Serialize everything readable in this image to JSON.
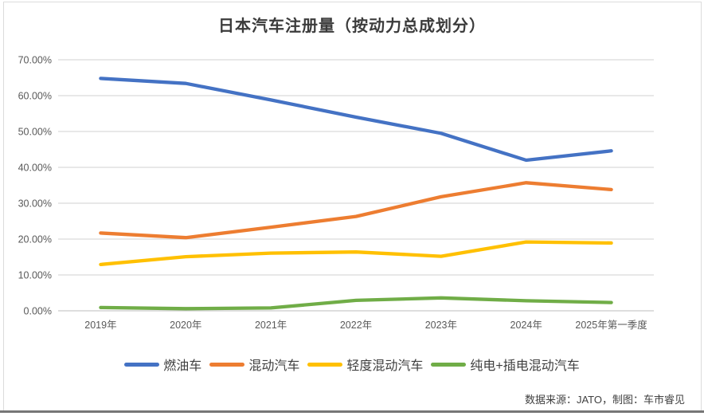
{
  "chart": {
    "title": "日本汽车注册量（按动力总成划分）",
    "source": "数据来源：JATO，制图：车市睿见"
  },
  "chart_data": {
    "type": "line",
    "title": "日本汽车注册量（按动力总成划分）",
    "categories": [
      "2019年",
      "2020年",
      "2021年",
      "2022年",
      "2023年",
      "2024年",
      "2025年第一季度"
    ],
    "series": [
      {
        "key": "fuel",
        "name": "燃油车",
        "color": "#4472C4",
        "values": [
          64.8,
          63.4,
          58.8,
          54.0,
          49.5,
          42.0,
          44.6
        ]
      },
      {
        "key": "hybrid",
        "name": "混动汽车",
        "color": "#ED7D31",
        "values": [
          21.7,
          20.4,
          23.3,
          26.3,
          31.8,
          35.7,
          33.8
        ]
      },
      {
        "key": "mild-hybrid",
        "name": "轻度混动汽车",
        "color": "#FFC000",
        "values": [
          12.9,
          15.1,
          16.1,
          16.4,
          15.2,
          19.2,
          18.9
        ]
      },
      {
        "key": "bev-phev",
        "name": "纯电+插电混动汽车",
        "color": "#70AD47",
        "values": [
          0.9,
          0.6,
          0.8,
          2.9,
          3.6,
          2.8,
          2.3
        ]
      }
    ],
    "y_axis": {
      "min": 0,
      "max": 70,
      "step": 10,
      "tick_labels": [
        "0.00%",
        "10.00%",
        "20.00%",
        "30.00%",
        "40.00%",
        "50.00%",
        "60.00%",
        "70.00%"
      ]
    },
    "grid": true,
    "legend_position": "bottom",
    "source": "数据来源：JATO，制图：车市睿见",
    "style_colors": {
      "gridline": "#D9D9D9",
      "baseline": "#C9C9C9",
      "axis_text": "#595959",
      "title_text": "#3B3B3B",
      "legend_text": "#404040"
    }
  }
}
